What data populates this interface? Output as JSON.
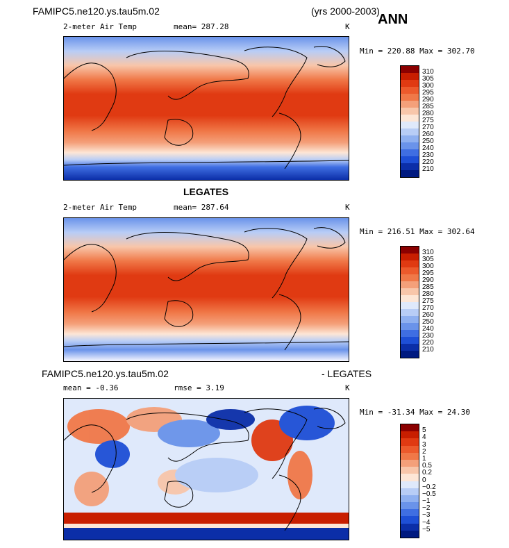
{
  "top": {
    "case": "FAMIPC5.ne120.ys.tau5m.02",
    "years": "(yrs 2000-2003)",
    "season": "ANN"
  },
  "panels": [
    {
      "id": "model",
      "title": "",
      "left_label": "2-meter Air Temp",
      "mean_label": "mean= 287.28",
      "units": "K",
      "minmax": "Min = 220.88 Max = 302.70",
      "colorbar": {
        "labels": [
          "310",
          "305",
          "300",
          "295",
          "290",
          "285",
          "280",
          "275",
          "270",
          "260",
          "250",
          "240",
          "230",
          "220",
          "210"
        ],
        "colors": [
          "#8b0000",
          "#c81e00",
          "#e03a12",
          "#ec5a2c",
          "#f07848",
          "#f4a07a",
          "#f8c6aa",
          "#fde6d6",
          "#dfe9fb",
          "#b8cdf6",
          "#8fb0f0",
          "#6a93ea",
          "#3f6ee2",
          "#1e4fd6",
          "#0b2ea8",
          "#001a80"
        ]
      }
    },
    {
      "id": "obs",
      "title": "LEGATES",
      "left_label": "2-meter Air Temp",
      "mean_label": "mean= 287.64",
      "units": "K",
      "minmax": "Min = 216.51 Max = 302.64",
      "colorbar": {
        "labels": [
          "310",
          "305",
          "300",
          "295",
          "290",
          "285",
          "280",
          "275",
          "270",
          "260",
          "250",
          "240",
          "230",
          "220",
          "210"
        ],
        "colors": [
          "#8b0000",
          "#c81e00",
          "#e03a12",
          "#ec5a2c",
          "#f07848",
          "#f4a07a",
          "#f8c6aa",
          "#fde6d6",
          "#dfe9fb",
          "#b8cdf6",
          "#8fb0f0",
          "#6a93ea",
          "#3f6ee2",
          "#1e4fd6",
          "#0b2ea8",
          "#001a80"
        ]
      }
    },
    {
      "id": "diff",
      "case_left": "FAMIPC5.ne120.ys.tau5m.02",
      "case_right": "- LEGATES",
      "mean_label": "mean =  -0.36",
      "rmse_label": "rmse =   3.19",
      "units": "K",
      "minmax": "Min = -31.34 Max =  24.30",
      "colorbar": {
        "labels": [
          "5",
          "4",
          "3",
          "2",
          "1",
          "0.5",
          "0.2",
          "0",
          "−0.2",
          "−0.5",
          "−1",
          "−2",
          "−3",
          "−4",
          "−5"
        ],
        "colors": [
          "#8b0000",
          "#c81e00",
          "#e03a12",
          "#ec5a2c",
          "#f07848",
          "#f4a07a",
          "#f8c6aa",
          "#fde6d6",
          "#dfe9fb",
          "#b8cdf6",
          "#8fb0f0",
          "#6a93ea",
          "#3f6ee2",
          "#1e4fd6",
          "#0b2ea8",
          "#001a80"
        ]
      }
    }
  ]
}
